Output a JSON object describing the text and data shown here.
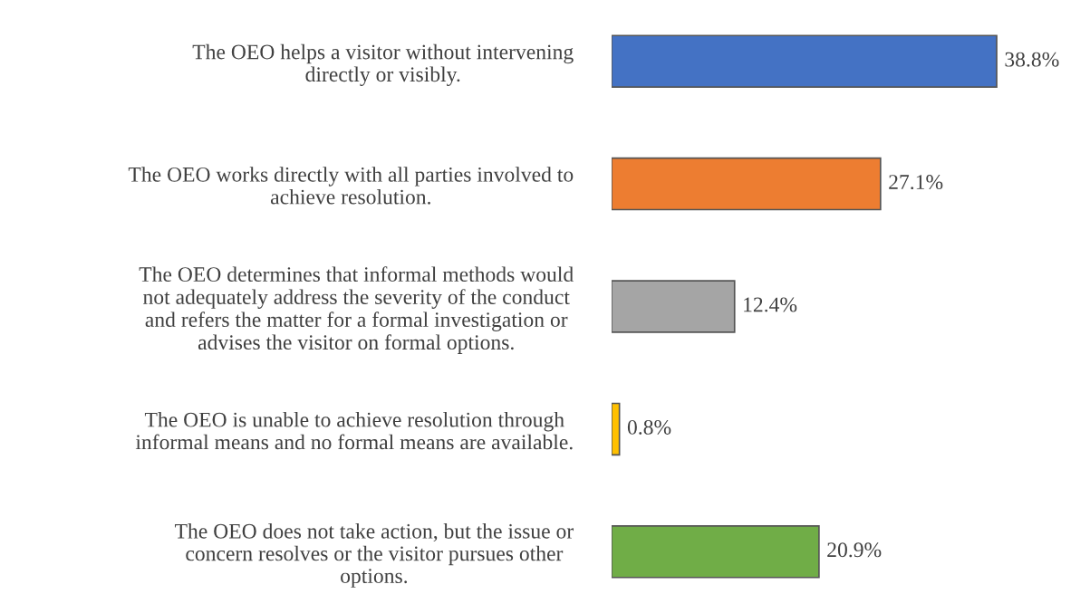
{
  "chart_data": {
    "type": "bar",
    "orientation": "horizontal",
    "categories": [
      "The OEO helps a visitor without intervening\ndirectly or visibly.",
      "The OEO works directly with all parties involved to\nachieve resolution.",
      "The OEO determines that informal methods would\nnot adequately address the severity of the conduct\nand refers the matter for a formal investigation or\nadvises the visitor on formal options.",
      "The OEO is unable to achieve resolution through\ninformal means and no formal means are available.",
      "The OEO does not take action, but the issue or\nconcern resolves or the visitor pursues other\noptions."
    ],
    "values": [
      38.8,
      27.1,
      12.4,
      0.8,
      20.9
    ],
    "colors": [
      "#4472c4",
      "#ed7d31",
      "#a5a5a5",
      "#ffc000",
      "#70ad47"
    ],
    "value_labels": [
      "38.8%",
      "27.1%",
      "12.4%",
      "0.8%",
      "20.9%"
    ],
    "grid": false,
    "legend": false
  }
}
